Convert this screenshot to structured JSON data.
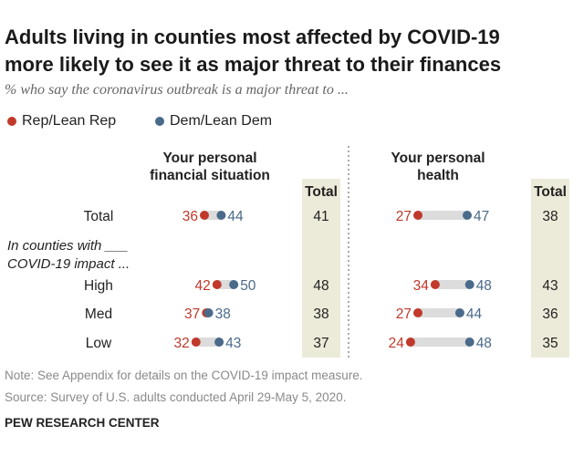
{
  "title_line1": "Adults living in counties most affected by COVID-19",
  "title_line2": "more likely to see it as major threat to their finances",
  "subtitle": "% who say the coronavirus outbreak is a major threat to ...",
  "legend": [
    {
      "label": "Rep/Lean Rep",
      "color": "#c0392b"
    },
    {
      "label": "Dem/Lean Dem",
      "color": "#4a6a8a"
    }
  ],
  "colors": {
    "rep": "#c0392b",
    "dem": "#4a6a8a",
    "total_bg": "#ecebd9",
    "bar": "#dcdcdc"
  },
  "note": "Note: See Appendix for details on the COVID-19 impact measure.",
  "source": "Source: Survey of U.S. adults conducted April 29-May 5, 2020.",
  "brand": "PEW RESEARCH CENTER",
  "chart_data": {
    "type": "dot-plot",
    "row_header": "In counties with ___ COVID-19 impact ...",
    "row_header_lines": [
      "In counties with ___",
      "COVID-19 impact ..."
    ],
    "rows": [
      "Total",
      "High",
      "Med",
      "Low"
    ],
    "panels": [
      {
        "title_lines": [
          "Your personal",
          "financial situation"
        ],
        "total_label": "Total",
        "rep": [
          36,
          42,
          37,
          32
        ],
        "dem": [
          44,
          50,
          38,
          43
        ],
        "total": [
          41,
          48,
          38,
          37
        ]
      },
      {
        "title_lines": [
          "Your personal",
          "health"
        ],
        "total_label": "Total",
        "rep": [
          27,
          34,
          27,
          24
        ],
        "dem": [
          47,
          48,
          44,
          48
        ],
        "total": [
          38,
          43,
          36,
          35
        ]
      }
    ]
  }
}
